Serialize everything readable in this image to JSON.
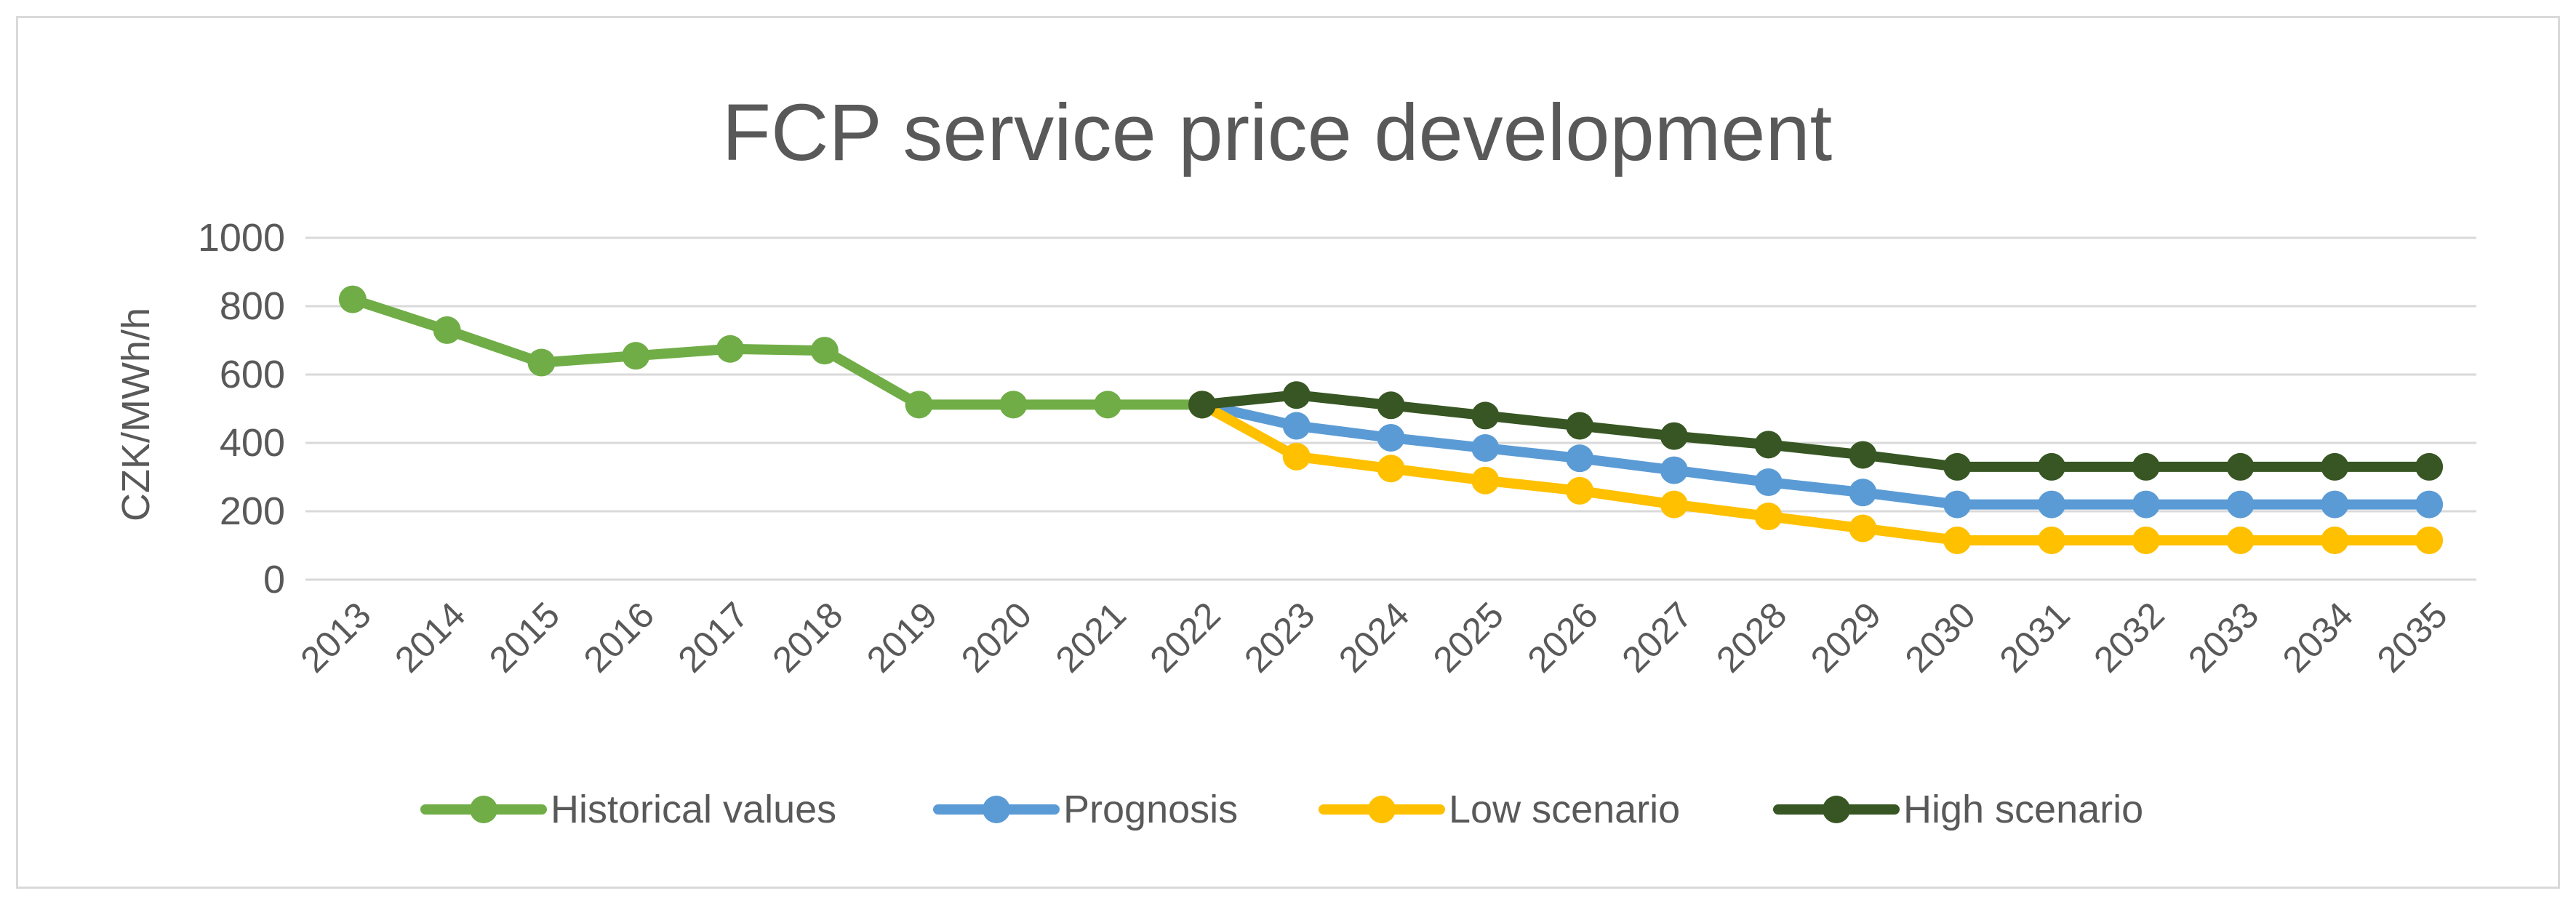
{
  "chart_data": {
    "type": "line",
    "title": "FCP service price development",
    "xlabel": "",
    "ylabel": "CZK/MWh/h",
    "ylim": [
      0,
      1000
    ],
    "yticks": [
      0,
      200,
      400,
      600,
      800,
      1000
    ],
    "grid": true,
    "legend_position": "bottom",
    "categories": [
      "2013",
      "2014",
      "2015",
      "2016",
      "2017",
      "2018",
      "2019",
      "2020",
      "2021",
      "2022",
      "2023",
      "2024",
      "2025",
      "2026",
      "2027",
      "2028",
      "2029",
      "2030",
      "2031",
      "2032",
      "2033",
      "2034",
      "2035"
    ],
    "series": [
      {
        "name": "Historical values",
        "color": "#70ad47",
        "values": [
          820,
          730,
          635,
          655,
          675,
          670,
          512,
          512,
          512,
          512,
          null,
          null,
          null,
          null,
          null,
          null,
          null,
          null,
          null,
          null,
          null,
          null,
          null
        ]
      },
      {
        "name": "Prognosis",
        "color": "#5b9bd5",
        "values": [
          null,
          null,
          null,
          null,
          null,
          null,
          null,
          null,
          null,
          512,
          450,
          415,
          385,
          355,
          320,
          285,
          255,
          220,
          220,
          220,
          220,
          220,
          220
        ]
      },
      {
        "name": "Low scenario",
        "color": "#ffc000",
        "values": [
          null,
          null,
          null,
          null,
          null,
          null,
          null,
          null,
          null,
          512,
          360,
          325,
          290,
          260,
          220,
          185,
          150,
          115,
          115,
          115,
          115,
          115,
          115
        ]
      },
      {
        "name": "High scenario",
        "color": "#375623",
        "values": [
          null,
          null,
          null,
          null,
          null,
          null,
          null,
          null,
          null,
          512,
          540,
          510,
          480,
          450,
          420,
          395,
          365,
          330,
          330,
          330,
          330,
          330,
          330
        ]
      }
    ]
  }
}
